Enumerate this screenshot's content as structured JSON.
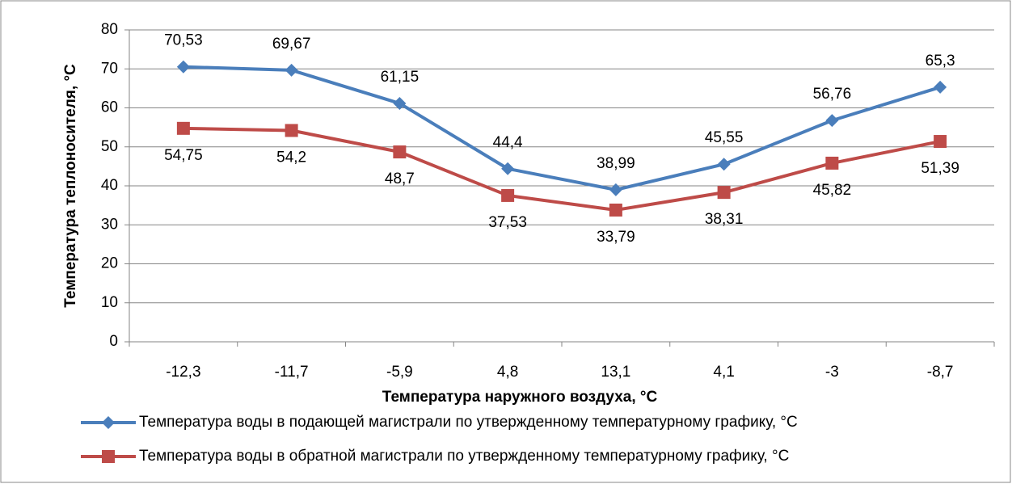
{
  "chart_data": {
    "type": "line",
    "y_label": "Температура теплоносителя, °C",
    "x_label": "Температура наружного воздуха, °C",
    "categories": [
      "-12,3",
      "-11,7",
      "-5,9",
      "4,8",
      "13,1",
      "4,1",
      "-3",
      "-8,7"
    ],
    "series": [
      {
        "name": "Температура воды в подающей магистрали по утвержденному температурному графику, °C",
        "color": "#4a7ebb",
        "marker": "diamond",
        "label_position": "above",
        "values": [
          70.53,
          69.67,
          61.15,
          44.4,
          38.99,
          45.55,
          56.76,
          65.3
        ],
        "value_labels": [
          "70,53",
          "69,67",
          "61,15",
          "44,4",
          "38,99",
          "45,55",
          "56,76",
          "65,3"
        ]
      },
      {
        "name": "Температура воды в обратной магистрали по утвержденному температурному графику, °C",
        "color": "#be4b48",
        "marker": "square",
        "label_position": "below",
        "values": [
          54.75,
          54.2,
          48.7,
          37.53,
          33.79,
          38.31,
          45.82,
          51.39
        ],
        "value_labels": [
          "54,75",
          "54,2",
          "48,7",
          "37,53",
          "33,79",
          "38,31",
          "45,82",
          "51,39"
        ]
      }
    ],
    "ylim": [
      0,
      80
    ],
    "yticks": [
      0,
      10,
      20,
      30,
      40,
      50,
      60,
      70,
      80
    ],
    "grid": true
  }
}
